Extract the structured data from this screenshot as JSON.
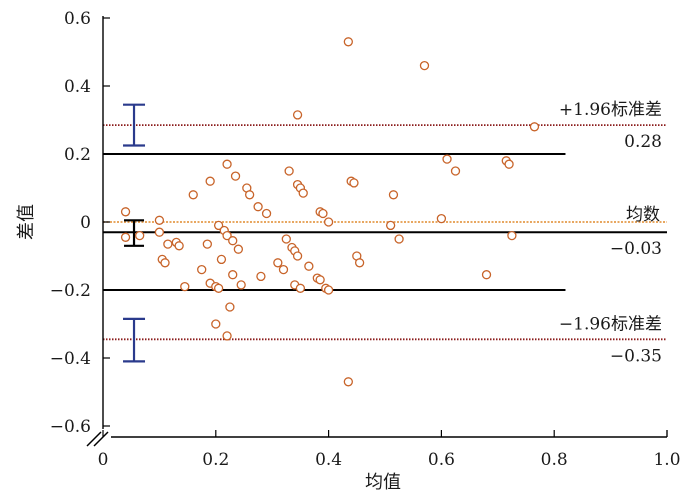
{
  "chart_data": {
    "type": "scatter",
    "xlabel": "均值",
    "ylabel": "差值",
    "xlim": [
      0,
      1.0
    ],
    "ylim": [
      -0.6,
      0.6
    ],
    "x_ticks": [
      0,
      0.2,
      0.4,
      0.6,
      0.8,
      1.0
    ],
    "x_tick_labels": [
      "0",
      "0.2",
      "0.4",
      "0.6",
      "0.8",
      "1.0"
    ],
    "y_ticks": [
      -0.6,
      -0.4,
      -0.2,
      0,
      0.2,
      0.4,
      0.6
    ],
    "y_tick_labels": [
      "−0.6",
      "−0.4",
      "−0.2",
      "0",
      "0.2",
      "0.4",
      "0.6"
    ],
    "axis_break": true,
    "grid": false,
    "colors": {
      "points": "#c8642a",
      "reference_line": "#8b1c1c",
      "zero_line": "#e08a2c",
      "agreement_band": "#000000",
      "ci_outer": "#2a3a8c",
      "ci_mean": "#000000"
    },
    "points": [
      {
        "x": 0.04,
        "y": 0.03
      },
      {
        "x": 0.04,
        "y": -0.045
      },
      {
        "x": 0.065,
        "y": -0.04
      },
      {
        "x": 0.1,
        "y": 0.005
      },
      {
        "x": 0.1,
        "y": -0.03
      },
      {
        "x": 0.105,
        "y": -0.11
      },
      {
        "x": 0.11,
        "y": -0.12
      },
      {
        "x": 0.115,
        "y": -0.065
      },
      {
        "x": 0.13,
        "y": -0.06
      },
      {
        "x": 0.135,
        "y": -0.07
      },
      {
        "x": 0.145,
        "y": -0.19
      },
      {
        "x": 0.16,
        "y": 0.08
      },
      {
        "x": 0.175,
        "y": -0.14
      },
      {
        "x": 0.185,
        "y": -0.065
      },
      {
        "x": 0.19,
        "y": 0.12
      },
      {
        "x": 0.19,
        "y": -0.18
      },
      {
        "x": 0.2,
        "y": -0.19
      },
      {
        "x": 0.2,
        "y": -0.3
      },
      {
        "x": 0.205,
        "y": -0.195
      },
      {
        "x": 0.205,
        "y": -0.01
      },
      {
        "x": 0.21,
        "y": -0.11
      },
      {
        "x": 0.215,
        "y": -0.025
      },
      {
        "x": 0.22,
        "y": -0.04
      },
      {
        "x": 0.22,
        "y": 0.17
      },
      {
        "x": 0.22,
        "y": -0.335
      },
      {
        "x": 0.225,
        "y": -0.25
      },
      {
        "x": 0.23,
        "y": -0.055
      },
      {
        "x": 0.23,
        "y": -0.155
      },
      {
        "x": 0.235,
        "y": 0.135
      },
      {
        "x": 0.24,
        "y": -0.08
      },
      {
        "x": 0.245,
        "y": -0.185
      },
      {
        "x": 0.255,
        "y": 0.1
      },
      {
        "x": 0.26,
        "y": 0.08
      },
      {
        "x": 0.275,
        "y": 0.045
      },
      {
        "x": 0.28,
        "y": -0.16
      },
      {
        "x": 0.29,
        "y": 0.025
      },
      {
        "x": 0.31,
        "y": -0.12
      },
      {
        "x": 0.32,
        "y": -0.14
      },
      {
        "x": 0.325,
        "y": -0.05
      },
      {
        "x": 0.33,
        "y": 0.15
      },
      {
        "x": 0.335,
        "y": -0.075
      },
      {
        "x": 0.34,
        "y": -0.085
      },
      {
        "x": 0.34,
        "y": -0.185
      },
      {
        "x": 0.345,
        "y": 0.315
      },
      {
        "x": 0.345,
        "y": 0.11
      },
      {
        "x": 0.345,
        "y": -0.1
      },
      {
        "x": 0.35,
        "y": 0.1
      },
      {
        "x": 0.35,
        "y": -0.195
      },
      {
        "x": 0.355,
        "y": 0.085
      },
      {
        "x": 0.365,
        "y": -0.13
      },
      {
        "x": 0.38,
        "y": -0.165
      },
      {
        "x": 0.385,
        "y": 0.03
      },
      {
        "x": 0.385,
        "y": -0.17
      },
      {
        "x": 0.39,
        "y": 0.025
      },
      {
        "x": 0.395,
        "y": -0.195
      },
      {
        "x": 0.4,
        "y": 0.0
      },
      {
        "x": 0.4,
        "y": -0.2
      },
      {
        "x": 0.435,
        "y": 0.53
      },
      {
        "x": 0.435,
        "y": -0.47
      },
      {
        "x": 0.44,
        "y": 0.12
      },
      {
        "x": 0.445,
        "y": 0.115
      },
      {
        "x": 0.45,
        "y": -0.1
      },
      {
        "x": 0.455,
        "y": -0.12
      },
      {
        "x": 0.51,
        "y": -0.01
      },
      {
        "x": 0.515,
        "y": 0.08
      },
      {
        "x": 0.525,
        "y": -0.05
      },
      {
        "x": 0.57,
        "y": 0.46
      },
      {
        "x": 0.6,
        "y": 0.01
      },
      {
        "x": 0.61,
        "y": 0.185
      },
      {
        "x": 0.625,
        "y": 0.15
      },
      {
        "x": 0.68,
        "y": -0.155
      },
      {
        "x": 0.715,
        "y": 0.18
      },
      {
        "x": 0.72,
        "y": 0.17
      },
      {
        "x": 0.725,
        "y": -0.04
      },
      {
        "x": 0.765,
        "y": 0.28
      }
    ],
    "reference_lines": [
      {
        "y": 0.285,
        "label": "+1.96标准差",
        "value_label": "0.28",
        "style": "dotted",
        "x_start": 0.0
      },
      {
        "y": 0.0,
        "label": "",
        "value_label": "",
        "style": "dotted-zero",
        "x_start": 0.0
      },
      {
        "y": -0.345,
        "label": "−1.96标准差",
        "value_label": "−0.35",
        "style": "dotted",
        "x_start": 0.0
      }
    ],
    "mean_line": {
      "y": -0.03,
      "label": "均数",
      "value_label": "−0.03"
    },
    "agreement_band": [
      {
        "y": 0.2,
        "x_start": 0.0,
        "x_end": 0.82
      },
      {
        "y": -0.2,
        "x_start": 0.0,
        "x_end": 0.82
      }
    ],
    "confidence_intervals": [
      {
        "x": 0.055,
        "low": 0.225,
        "high": 0.345,
        "type": "upper"
      },
      {
        "x": 0.055,
        "low": -0.07,
        "high": 0.005,
        "type": "mean"
      },
      {
        "x": 0.055,
        "low": -0.41,
        "high": -0.285,
        "type": "lower"
      }
    ]
  }
}
